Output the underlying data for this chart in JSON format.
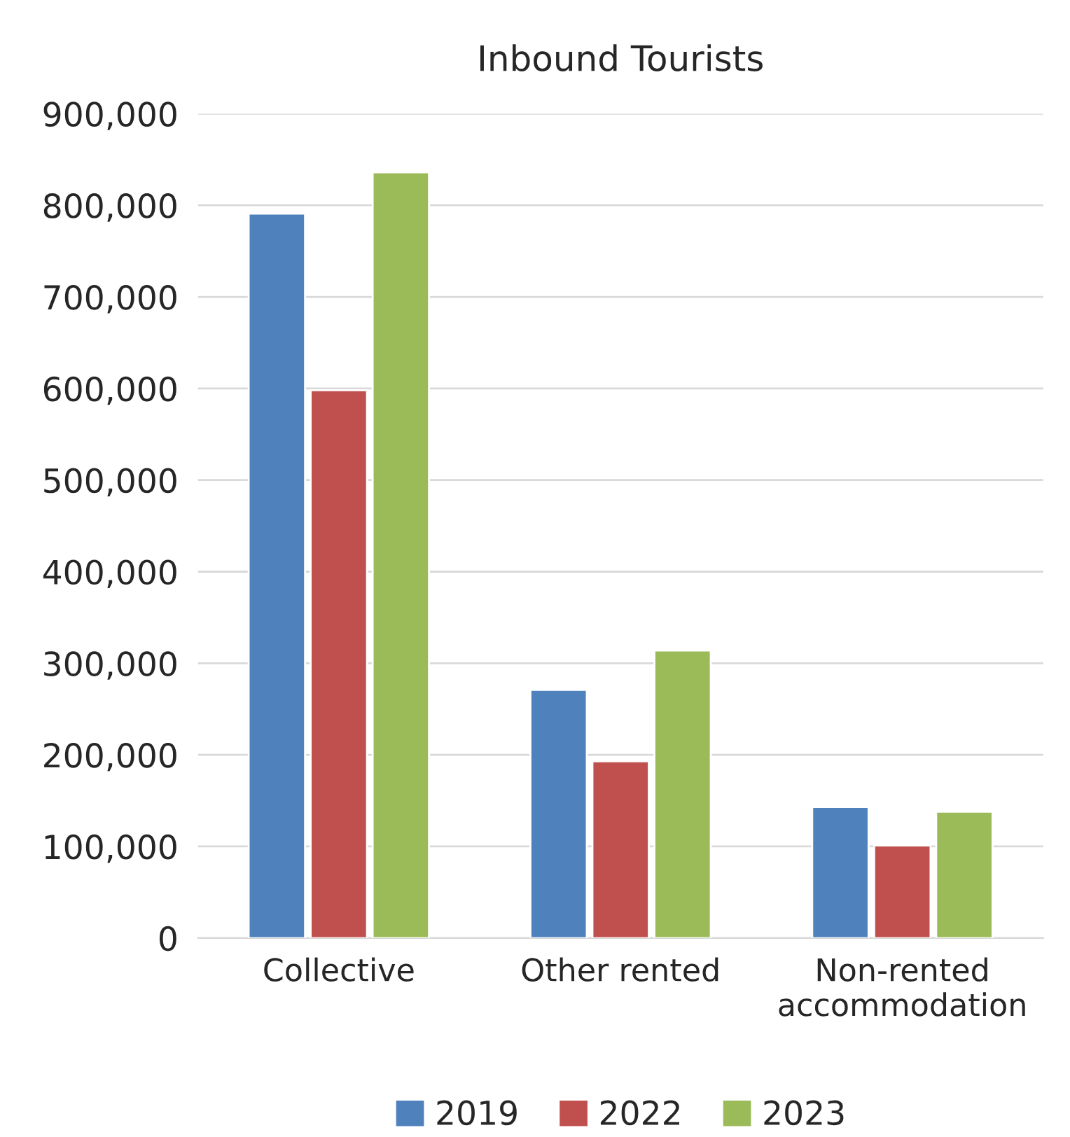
{
  "chart_data": {
    "type": "bar",
    "title": "Inbound Tourists",
    "categories": [
      "Collective",
      "Other rented",
      "Non-rented\naccommodation"
    ],
    "series": [
      {
        "name": "2019",
        "color": "#4f81bd",
        "values": [
          791000,
          271000,
          143000
        ]
      },
      {
        "name": "2022",
        "color": "#c0504d",
        "values": [
          598000,
          193000,
          101000
        ]
      },
      {
        "name": "2023",
        "color": "#9bbb59",
        "values": [
          836000,
          314000,
          138000
        ]
      }
    ],
    "ylim": [
      0,
      900000
    ],
    "yticks": [
      {
        "value": 0,
        "label": "0"
      },
      {
        "value": 100000,
        "label": "100,000"
      },
      {
        "value": 200000,
        "label": "200,000"
      },
      {
        "value": 300000,
        "label": "300,000"
      },
      {
        "value": 400000,
        "label": "400,000"
      },
      {
        "value": 500000,
        "label": "500,000"
      },
      {
        "value": 600000,
        "label": "600,000"
      },
      {
        "value": 700000,
        "label": "700,000"
      },
      {
        "value": 800000,
        "label": "800,000"
      },
      {
        "value": 900000,
        "label": "900,000"
      }
    ],
    "grid": "y",
    "legend": "bottom"
  }
}
